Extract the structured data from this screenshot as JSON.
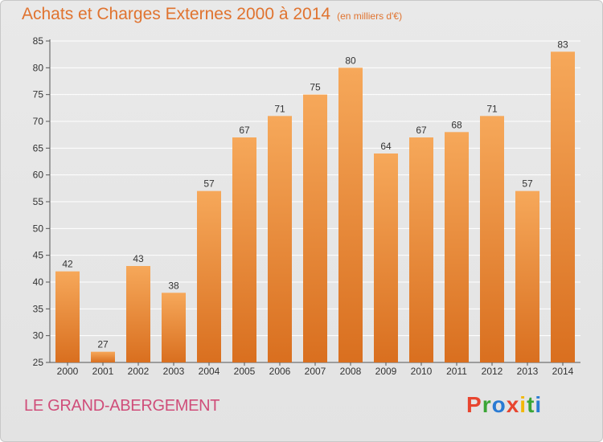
{
  "header": {
    "title": "Achats et Charges Externes 2000 à 2014",
    "unit": "(en milliers d'€)"
  },
  "footer": {
    "commune": "LE GRAND-ABERGEMENT",
    "logo": [
      "P",
      "r",
      "o",
      "x",
      "i",
      "t",
      "i"
    ]
  },
  "colors": {
    "title": "#e0732f",
    "commune": "#d04e7a",
    "bar_light": "#f6a85a",
    "bar_dark": "#d96f1f",
    "logo": [
      "#e8452f",
      "#3aa535",
      "#2a7bd3",
      "#e8452f",
      "#f2b705",
      "#3aa535",
      "#2a7bd3"
    ]
  },
  "chart_data": {
    "type": "bar",
    "title": "Achats et Charges Externes 2000 à 2014",
    "subtitle": "(en milliers d'€)",
    "categories": [
      "2000",
      "2001",
      "2002",
      "2003",
      "2004",
      "2005",
      "2006",
      "2007",
      "2008",
      "2009",
      "2010",
      "2011",
      "2012",
      "2013",
      "2014"
    ],
    "values": [
      42,
      27,
      43,
      38,
      57,
      67,
      71,
      75,
      80,
      64,
      67,
      68,
      71,
      57,
      83
    ],
    "ylim": [
      25,
      85
    ],
    "yticks": [
      25,
      30,
      35,
      40,
      45,
      50,
      55,
      60,
      65,
      70,
      75,
      80,
      85
    ],
    "grid": true,
    "xlabel": "",
    "ylabel": ""
  }
}
